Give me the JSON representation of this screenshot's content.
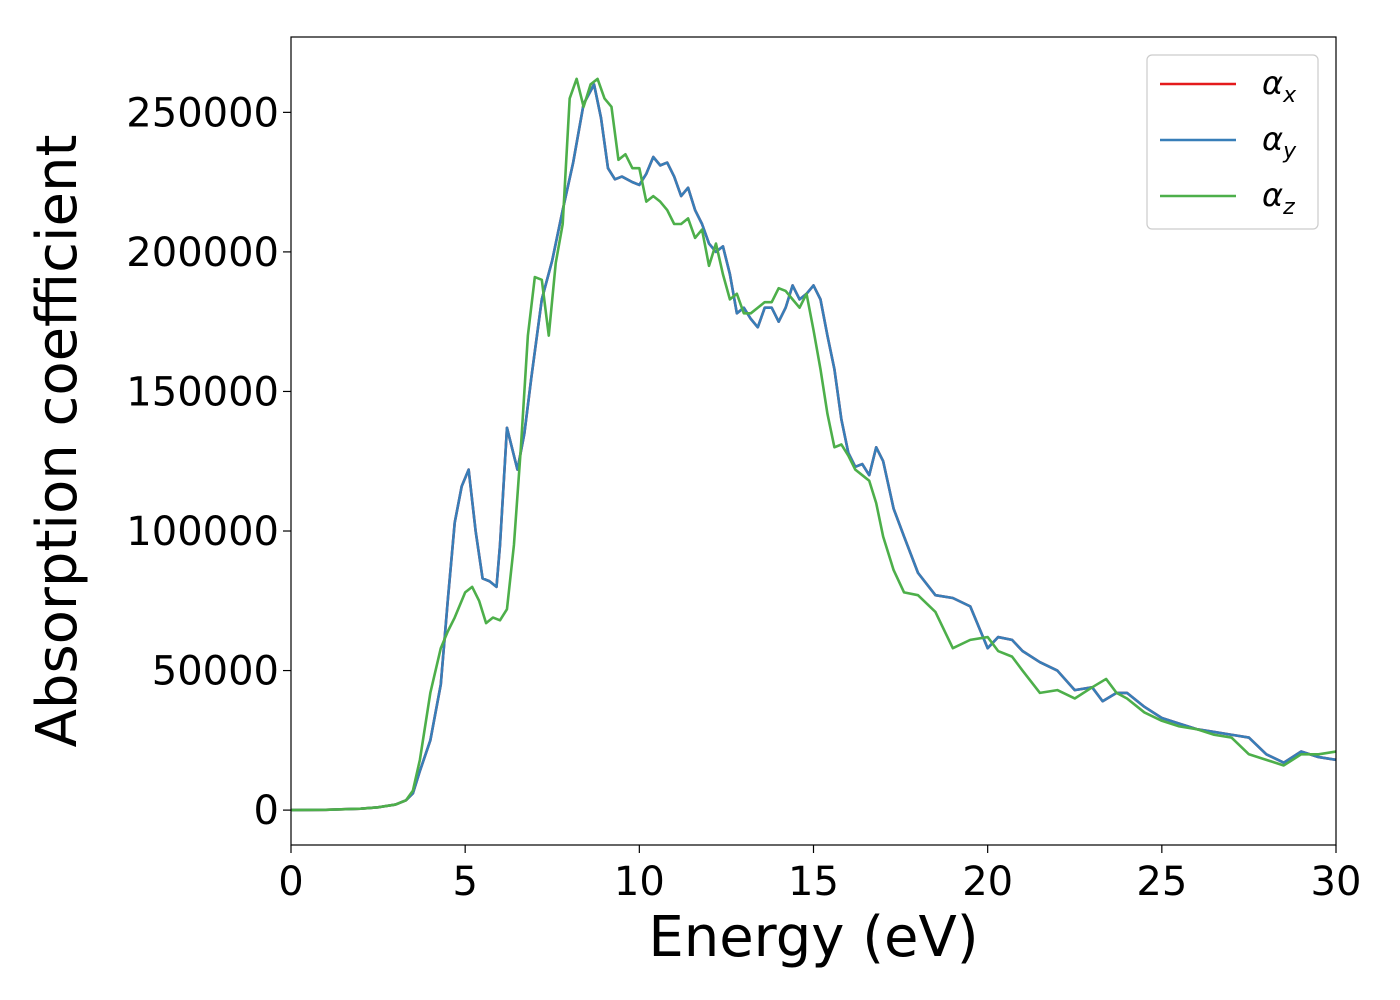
{
  "chart_data": {
    "type": "line",
    "title": "",
    "xlabel": "Energy (eV)",
    "ylabel": "Absorption coefficient",
    "xlim": [
      0,
      30
    ],
    "ylim": [
      -12500,
      277000
    ],
    "xticks": [
      0,
      5,
      10,
      15,
      20,
      25,
      30
    ],
    "xtick_labels": [
      "0",
      "5",
      "10",
      "15",
      "20",
      "25",
      "30"
    ],
    "yticks": [
      0,
      50000,
      100000,
      150000,
      200000,
      250000
    ],
    "ytick_labels": [
      "0",
      "50000",
      "100000",
      "150000",
      "200000",
      "250000"
    ],
    "grid": false,
    "legend_position": "top-right",
    "legend": [
      {
        "symbol": "α",
        "subscript": "x",
        "color": "#e41a1c"
      },
      {
        "symbol": "α",
        "subscript": "y",
        "color": "#377eb8"
      },
      {
        "symbol": "α",
        "subscript": "z",
        "color": "#4daf4a"
      }
    ],
    "series": [
      {
        "name": "αx",
        "color": "#e41a1c",
        "x": [
          0,
          1,
          2,
          2.5,
          3,
          3.3,
          3.5,
          3.7,
          4.0,
          4.3,
          4.5,
          4.7,
          4.9,
          5.1,
          5.3,
          5.5,
          5.7,
          5.9,
          6.0,
          6.2,
          6.3,
          6.5,
          6.7,
          6.9,
          7.2,
          7.5,
          7.8,
          8.1,
          8.4,
          8.7,
          8.9,
          9.1,
          9.3,
          9.5,
          9.8,
          10.0,
          10.2,
          10.4,
          10.6,
          10.8,
          11.0,
          11.2,
          11.4,
          11.6,
          11.8,
          12.0,
          12.2,
          12.4,
          12.6,
          12.8,
          13.0,
          13.2,
          13.4,
          13.6,
          13.8,
          14.0,
          14.2,
          14.4,
          14.6,
          14.8,
          15.0,
          15.2,
          15.4,
          15.6,
          15.8,
          16.0,
          16.2,
          16.4,
          16.6,
          16.8,
          17.0,
          17.3,
          17.6,
          18.0,
          18.5,
          19.0,
          19.5,
          20.0,
          20.3,
          20.7,
          21.0,
          21.5,
          22.0,
          22.5,
          23.0,
          23.3,
          23.7,
          24.0,
          24.5,
          25.0,
          25.5,
          26.0,
          26.5,
          27.0,
          27.5,
          28.0,
          28.5,
          29.0,
          29.5,
          30.0
        ],
        "y": [
          0,
          100,
          500,
          1000,
          2000,
          3500,
          6000,
          14000,
          25000,
          45000,
          75000,
          103000,
          116000,
          122000,
          100000,
          83000,
          82000,
          80000,
          95000,
          137000,
          132000,
          122000,
          135000,
          155000,
          183000,
          197000,
          215000,
          232000,
          253000,
          260000,
          248000,
          230000,
          226000,
          227000,
          225000,
          224000,
          228000,
          234000,
          231000,
          232000,
          227000,
          220000,
          223000,
          215000,
          210000,
          203000,
          200000,
          202000,
          192000,
          178000,
          180000,
          176000,
          173000,
          180000,
          180000,
          175000,
          180000,
          188000,
          183000,
          185000,
          188000,
          183000,
          170000,
          158000,
          140000,
          128000,
          123000,
          124000,
          120000,
          130000,
          125000,
          108000,
          98000,
          85000,
          77000,
          76000,
          73000,
          58000,
          62000,
          61000,
          57000,
          53000,
          50000,
          43000,
          44000,
          39000,
          42000,
          42000,
          37000,
          33000,
          31000,
          29000,
          28000,
          27000,
          26000,
          20000,
          17000,
          21000,
          19000,
          18000
        ]
      },
      {
        "name": "αy",
        "color": "#377eb8",
        "x": [
          0,
          1,
          2,
          2.5,
          3,
          3.3,
          3.5,
          3.7,
          4.0,
          4.3,
          4.5,
          4.7,
          4.9,
          5.1,
          5.3,
          5.5,
          5.7,
          5.9,
          6.0,
          6.2,
          6.3,
          6.5,
          6.7,
          6.9,
          7.2,
          7.5,
          7.8,
          8.1,
          8.4,
          8.7,
          8.9,
          9.1,
          9.3,
          9.5,
          9.8,
          10.0,
          10.2,
          10.4,
          10.6,
          10.8,
          11.0,
          11.2,
          11.4,
          11.6,
          11.8,
          12.0,
          12.2,
          12.4,
          12.6,
          12.8,
          13.0,
          13.2,
          13.4,
          13.6,
          13.8,
          14.0,
          14.2,
          14.4,
          14.6,
          14.8,
          15.0,
          15.2,
          15.4,
          15.6,
          15.8,
          16.0,
          16.2,
          16.4,
          16.6,
          16.8,
          17.0,
          17.3,
          17.6,
          18.0,
          18.5,
          19.0,
          19.5,
          20.0,
          20.3,
          20.7,
          21.0,
          21.5,
          22.0,
          22.5,
          23.0,
          23.3,
          23.7,
          24.0,
          24.5,
          25.0,
          25.5,
          26.0,
          26.5,
          27.0,
          27.5,
          28.0,
          28.5,
          29.0,
          29.5,
          30.0
        ],
        "y": [
          0,
          100,
          500,
          1000,
          2000,
          3500,
          6000,
          14000,
          25000,
          45000,
          75000,
          103000,
          116000,
          122000,
          100000,
          83000,
          82000,
          80000,
          95000,
          137000,
          132000,
          122000,
          135000,
          155000,
          183000,
          197000,
          215000,
          232000,
          253000,
          260000,
          248000,
          230000,
          226000,
          227000,
          225000,
          224000,
          228000,
          234000,
          231000,
          232000,
          227000,
          220000,
          223000,
          215000,
          210000,
          203000,
          200000,
          202000,
          192000,
          178000,
          180000,
          176000,
          173000,
          180000,
          180000,
          175000,
          180000,
          188000,
          183000,
          185000,
          188000,
          183000,
          170000,
          158000,
          140000,
          128000,
          123000,
          124000,
          120000,
          130000,
          125000,
          108000,
          98000,
          85000,
          77000,
          76000,
          73000,
          58000,
          62000,
          61000,
          57000,
          53000,
          50000,
          43000,
          44000,
          39000,
          42000,
          42000,
          37000,
          33000,
          31000,
          29000,
          28000,
          27000,
          26000,
          20000,
          17000,
          21000,
          19000,
          18000
        ]
      },
      {
        "name": "αz",
        "color": "#4daf4a",
        "x": [
          0,
          1,
          2,
          2.5,
          3,
          3.3,
          3.5,
          3.7,
          4.0,
          4.3,
          4.5,
          4.7,
          5.0,
          5.2,
          5.4,
          5.6,
          5.8,
          6.0,
          6.2,
          6.4,
          6.6,
          6.8,
          7.0,
          7.2,
          7.4,
          7.6,
          7.8,
          8.0,
          8.2,
          8.4,
          8.6,
          8.8,
          9.0,
          9.2,
          9.4,
          9.6,
          9.8,
          10.0,
          10.2,
          10.4,
          10.6,
          10.8,
          11.0,
          11.2,
          11.4,
          11.6,
          11.8,
          12.0,
          12.2,
          12.4,
          12.6,
          12.8,
          13.0,
          13.2,
          13.4,
          13.6,
          13.8,
          14.0,
          14.2,
          14.4,
          14.6,
          14.8,
          15.0,
          15.2,
          15.4,
          15.6,
          15.8,
          16.0,
          16.2,
          16.4,
          16.6,
          16.8,
          17.0,
          17.3,
          17.6,
          18.0,
          18.5,
          19.0,
          19.5,
          20.0,
          20.3,
          20.7,
          21.0,
          21.5,
          22.0,
          22.5,
          23.0,
          23.4,
          23.7,
          24.0,
          24.5,
          25.0,
          25.5,
          26.0,
          26.5,
          27.0,
          27.5,
          28.0,
          28.5,
          29.0,
          29.5,
          30.0
        ],
        "y": [
          0,
          100,
          500,
          1000,
          2000,
          3500,
          7000,
          18000,
          42000,
          58000,
          64000,
          69000,
          78000,
          80000,
          75000,
          67000,
          69000,
          68000,
          72000,
          95000,
          130000,
          170000,
          191000,
          190000,
          170000,
          196000,
          210000,
          255000,
          262000,
          252000,
          260000,
          262000,
          255000,
          252000,
          233000,
          235000,
          230000,
          230000,
          218000,
          220000,
          218000,
          215000,
          210000,
          210000,
          212000,
          205000,
          208000,
          195000,
          203000,
          192000,
          183000,
          185000,
          178000,
          178000,
          180000,
          182000,
          182000,
          187000,
          186000,
          183000,
          180000,
          185000,
          172000,
          158000,
          142000,
          130000,
          131000,
          127000,
          122000,
          120000,
          118000,
          110000,
          98000,
          86000,
          78000,
          77000,
          71000,
          58000,
          61000,
          62000,
          57000,
          55000,
          50000,
          42000,
          43000,
          40000,
          44000,
          47000,
          42000,
          40000,
          35000,
          32000,
          30000,
          29000,
          27000,
          26000,
          20000,
          18000,
          16000,
          20000,
          20000,
          21000
        ]
      }
    ]
  }
}
